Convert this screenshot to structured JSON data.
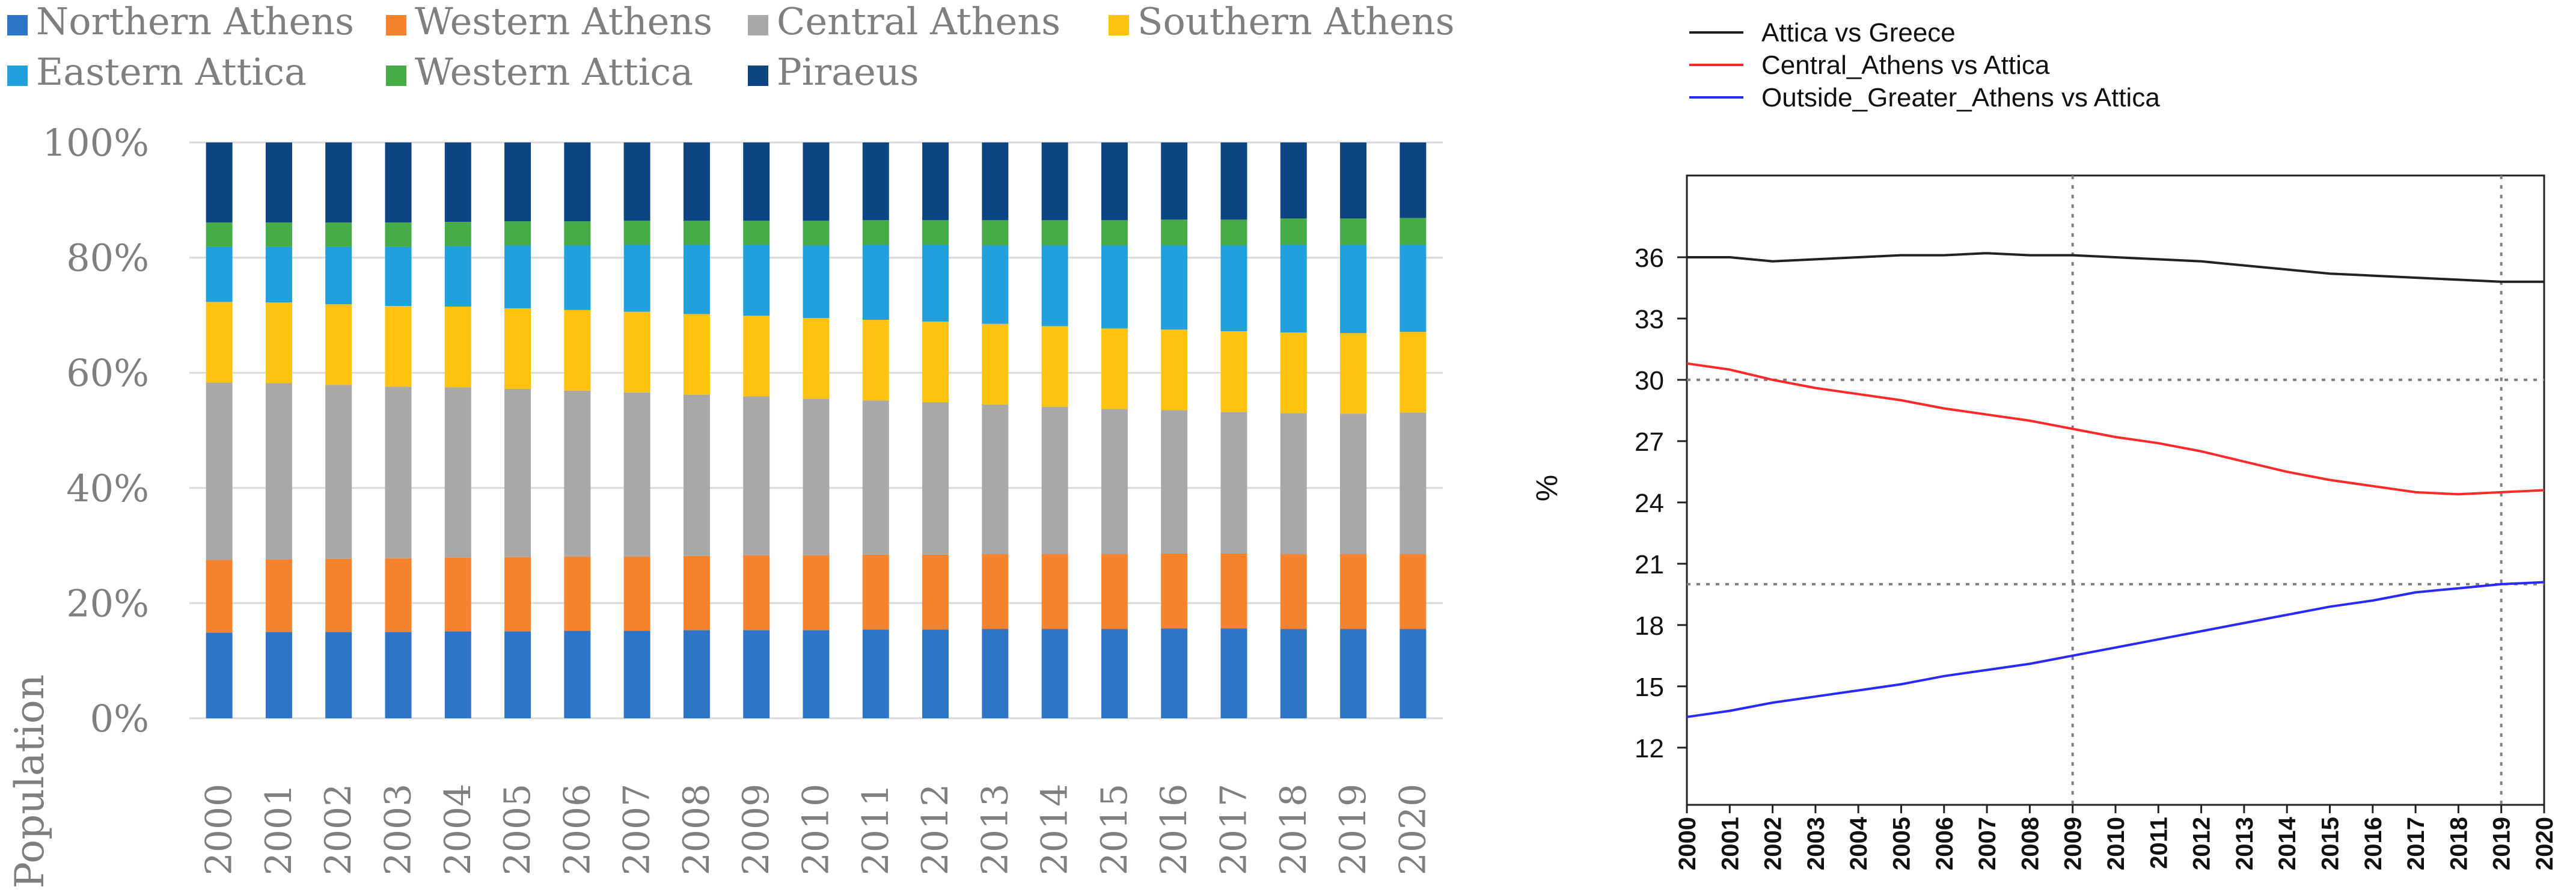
{
  "chart_data": [
    {
      "type": "stacked-bar",
      "title": "",
      "xlabel": "",
      "ylabel": "Population",
      "ylim": [
        0,
        100
      ],
      "yticks": [
        "0%",
        "20%",
        "40%",
        "60%",
        "80%",
        "100%"
      ],
      "legend_position": "top",
      "categories": [
        "2000",
        "2001",
        "2002",
        "2003",
        "2004",
        "2005",
        "2006",
        "2007",
        "2008",
        "2009",
        "2010",
        "2011",
        "2012",
        "2013",
        "2014",
        "2015",
        "2016",
        "2017",
        "2018",
        "2019",
        "2020"
      ],
      "series": [
        {
          "name": "Northern Athens",
          "color": "#2e75c8",
          "values": [
            14.9,
            15.0,
            15.0,
            15.0,
            15.1,
            15.1,
            15.2,
            15.2,
            15.3,
            15.3,
            15.3,
            15.4,
            15.4,
            15.5,
            15.5,
            15.5,
            15.6,
            15.6,
            15.5,
            15.5,
            15.5
          ]
        },
        {
          "name": "Western Athens",
          "color": "#f7832e",
          "values": [
            12.6,
            12.6,
            12.7,
            12.8,
            12.8,
            12.9,
            12.9,
            12.9,
            12.9,
            13.0,
            13.0,
            13.0,
            13.0,
            13.0,
            13.0,
            13.0,
            13.0,
            13.0,
            13.0,
            13.0,
            13.0
          ]
        },
        {
          "name": "Central Athens",
          "color": "#a8a8a8",
          "values": [
            30.8,
            30.6,
            30.2,
            29.8,
            29.6,
            29.2,
            28.8,
            28.5,
            28.0,
            27.6,
            27.2,
            26.8,
            26.5,
            26.0,
            25.6,
            25.2,
            24.9,
            24.6,
            24.5,
            24.4,
            24.6
          ]
        },
        {
          "name": "Southern Athens",
          "color": "#ffc20e",
          "values": [
            14.0,
            14.0,
            14.0,
            14.0,
            14.0,
            14.0,
            14.0,
            14.0,
            14.0,
            14.0,
            14.0,
            14.0,
            14.0,
            14.0,
            14.0,
            14.0,
            14.0,
            14.0,
            14.0,
            14.0,
            14.0
          ]
        },
        {
          "name": "Eastern Attica",
          "color": "#22a0dd",
          "values": [
            9.6,
            9.7,
            10.0,
            10.3,
            10.5,
            10.9,
            11.2,
            11.6,
            12.0,
            12.3,
            12.6,
            13.0,
            13.3,
            13.6,
            14.0,
            14.4,
            14.6,
            14.9,
            15.2,
            15.3,
            15.1
          ]
        },
        {
          "name": "Western Attica",
          "color": "#46ac46",
          "values": [
            4.2,
            4.2,
            4.2,
            4.2,
            4.2,
            4.2,
            4.2,
            4.2,
            4.2,
            4.2,
            4.3,
            4.3,
            4.3,
            4.4,
            4.4,
            4.4,
            4.5,
            4.5,
            4.6,
            4.6,
            4.7
          ]
        },
        {
          "name": "Piraeus",
          "color": "#0d4584",
          "values": [
            13.9,
            13.9,
            13.9,
            13.9,
            13.8,
            13.7,
            13.7,
            13.6,
            13.6,
            13.6,
            13.6,
            13.5,
            13.5,
            13.5,
            13.5,
            13.5,
            13.4,
            13.4,
            13.2,
            13.2,
            13.1
          ]
        }
      ]
    },
    {
      "type": "line",
      "title": "",
      "xlabel": "",
      "ylabel": "%",
      "ylim": [
        9.2,
        40.0
      ],
      "yticks": [
        12,
        15,
        18,
        21,
        24,
        27,
        30,
        33,
        36
      ],
      "grid": "dotted reference lines at y=20, y=30, x=2009, x=2019",
      "legend_position": "top-left",
      "x": [
        2000,
        2001,
        2002,
        2003,
        2004,
        2005,
        2006,
        2007,
        2008,
        2009,
        2010,
        2011,
        2012,
        2013,
        2014,
        2015,
        2016,
        2017,
        2018,
        2019,
        2020
      ],
      "series": [
        {
          "name": "Attica vs Greece",
          "color": "#222222",
          "values": [
            36.0,
            36.0,
            35.8,
            35.9,
            36.0,
            36.1,
            36.1,
            36.2,
            36.1,
            36.1,
            36.0,
            35.9,
            35.8,
            35.6,
            35.4,
            35.2,
            35.1,
            35.0,
            34.9,
            34.8,
            34.8
          ]
        },
        {
          "name": "Central_Athens vs Attica",
          "color": "#ff2a2a",
          "values": [
            30.8,
            30.5,
            30.0,
            29.6,
            29.3,
            29.0,
            28.6,
            28.3,
            28.0,
            27.6,
            27.2,
            26.9,
            26.5,
            26.0,
            25.5,
            25.1,
            24.8,
            24.5,
            24.4,
            24.5,
            24.6
          ]
        },
        {
          "name": "Outside_Greater_Athens vs Attica",
          "color": "#2a2aff",
          "values": [
            13.5,
            13.8,
            14.2,
            14.5,
            14.8,
            15.1,
            15.5,
            15.8,
            16.1,
            16.5,
            16.9,
            17.3,
            17.7,
            18.1,
            18.5,
            18.9,
            19.2,
            19.6,
            19.8,
            20.0,
            20.1
          ]
        }
      ]
    }
  ]
}
